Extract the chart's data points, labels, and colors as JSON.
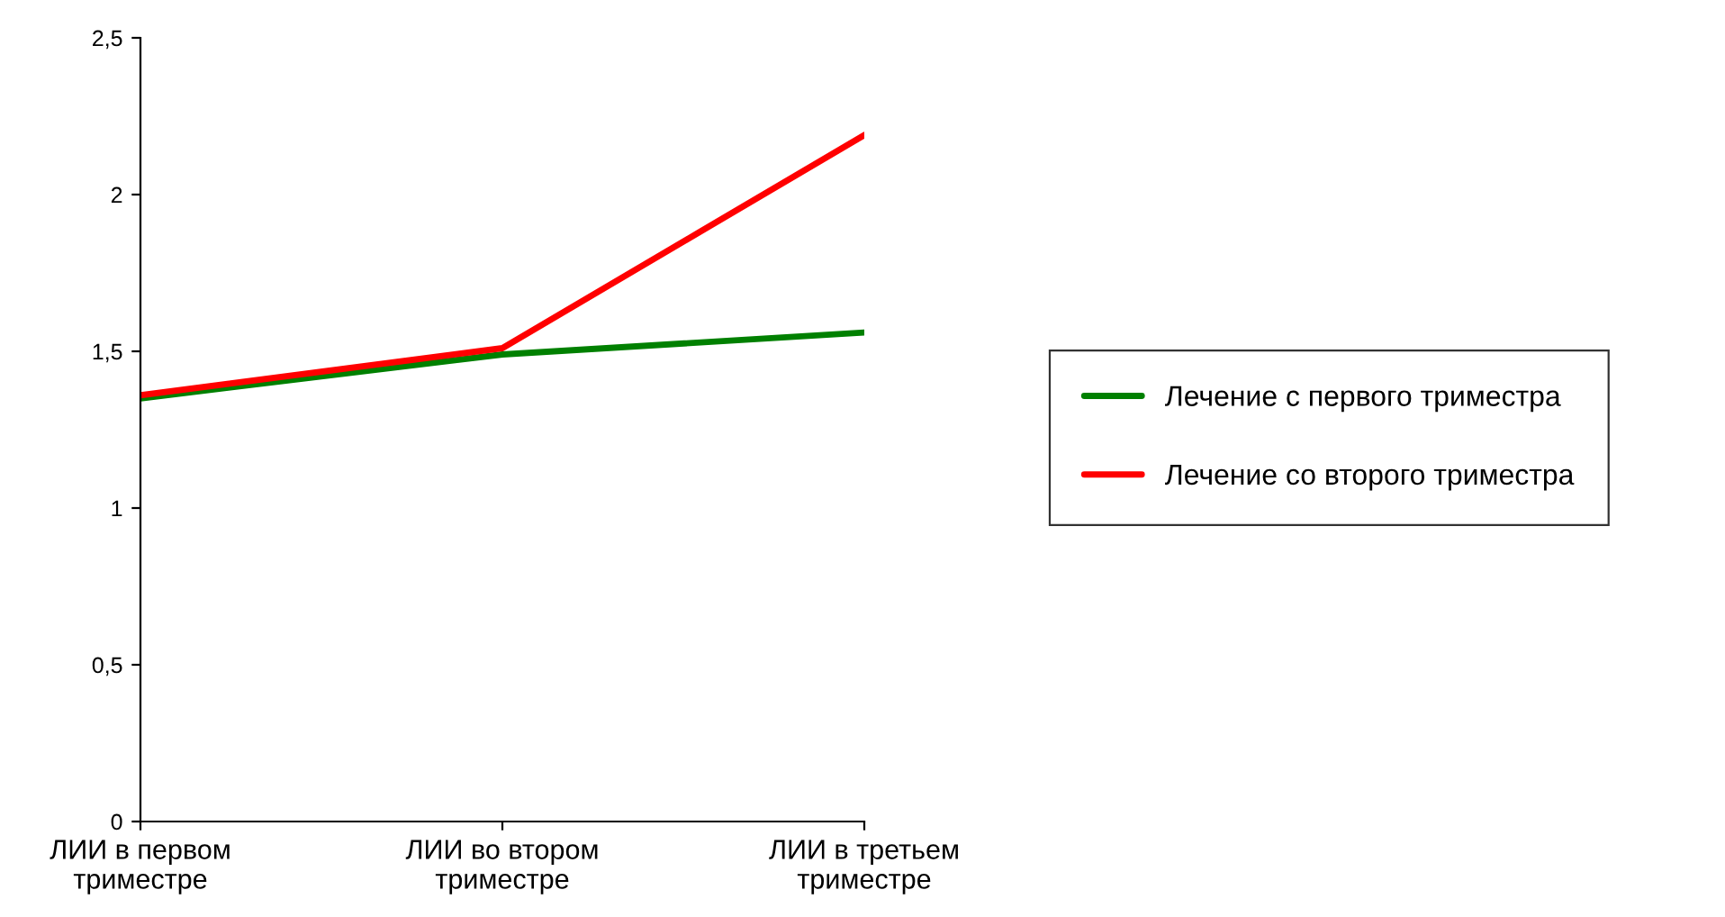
{
  "chart_data": {
    "type": "line",
    "categories": [
      "ЛИИ в первом триместре",
      "ЛИИ во втором триместре",
      "ЛИИ в третьем триместре"
    ],
    "series": [
      {
        "name": "Лечение с первого триместра",
        "color": "#008000",
        "values": [
          1.35,
          1.49,
          1.56
        ]
      },
      {
        "name": "Лечение со второго триместра",
        "color": "#ff0000",
        "values": [
          1.36,
          1.51,
          2.19
        ]
      }
    ],
    "ylim": [
      0,
      2.5
    ],
    "yticks": [
      0,
      {
        "value": 0.5,
        "label": "0,5"
      },
      1,
      {
        "value": 1.5,
        "label": "1,5"
      },
      2,
      {
        "value": 2.5,
        "label": "2,5"
      }
    ],
    "grid": false,
    "legend": "right",
    "marker": "none",
    "line_style": "solid"
  }
}
